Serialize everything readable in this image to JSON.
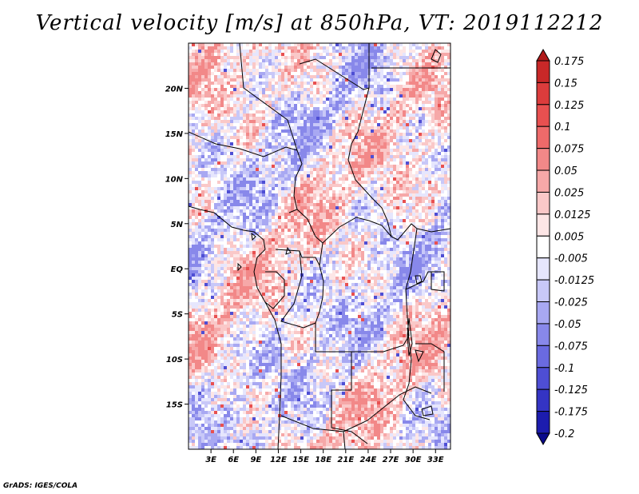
{
  "title": "Vertical velocity [m/s] at 850hPa, VT: 2019112212",
  "credit": "GrADS: IGES/COLA",
  "map": {
    "variable": "Vertical velocity",
    "units": "m/s",
    "level": "850hPa",
    "valid_time": "2019112212",
    "lon_range": [
      0,
      35
    ],
    "lat_range": [
      -20,
      25
    ],
    "lon_ticks": [
      {
        "value": 3,
        "label": "3E"
      },
      {
        "value": 6,
        "label": "6E"
      },
      {
        "value": 9,
        "label": "9E"
      },
      {
        "value": 12,
        "label": "12E"
      },
      {
        "value": 15,
        "label": "15E"
      },
      {
        "value": 18,
        "label": "18E"
      },
      {
        "value": 21,
        "label": "21E"
      },
      {
        "value": 24,
        "label": "24E"
      },
      {
        "value": 27,
        "label": "27E"
      },
      {
        "value": 30,
        "label": "30E"
      },
      {
        "value": 33,
        "label": "33E"
      }
    ],
    "lat_ticks": [
      {
        "value": 20,
        "label": "20N"
      },
      {
        "value": 15,
        "label": "15N"
      },
      {
        "value": 10,
        "label": "10N"
      },
      {
        "value": 5,
        "label": "5N"
      },
      {
        "value": 0,
        "label": "EQ"
      },
      {
        "value": -5,
        "label": "5S"
      },
      {
        "value": -10,
        "label": "10S"
      },
      {
        "value": -15,
        "label": "15S"
      }
    ]
  },
  "colorbar": {
    "levels": [
      "0.175",
      "0.15",
      "0.125",
      "0.1",
      "0.075",
      "0.05",
      "0.025",
      "0.0125",
      "0.005",
      "-0.005",
      "-0.0125",
      "-0.025",
      "-0.05",
      "-0.075",
      "-0.1",
      "-0.125",
      "-0.175",
      "-0.2"
    ],
    "colors": [
      "#b01a1a",
      "#c82828",
      "#dc3c3c",
      "#e85050",
      "#ee6a6a",
      "#f28888",
      "#f6a8a8",
      "#fac8c8",
      "#fde6e6",
      "#ffffff",
      "#e6e6fd",
      "#c8c8f8",
      "#a8a8f2",
      "#8888ea",
      "#6a6ae0",
      "#4e4ed4",
      "#3434c4",
      "#1c1cae",
      "#0a0a8c"
    ]
  }
}
